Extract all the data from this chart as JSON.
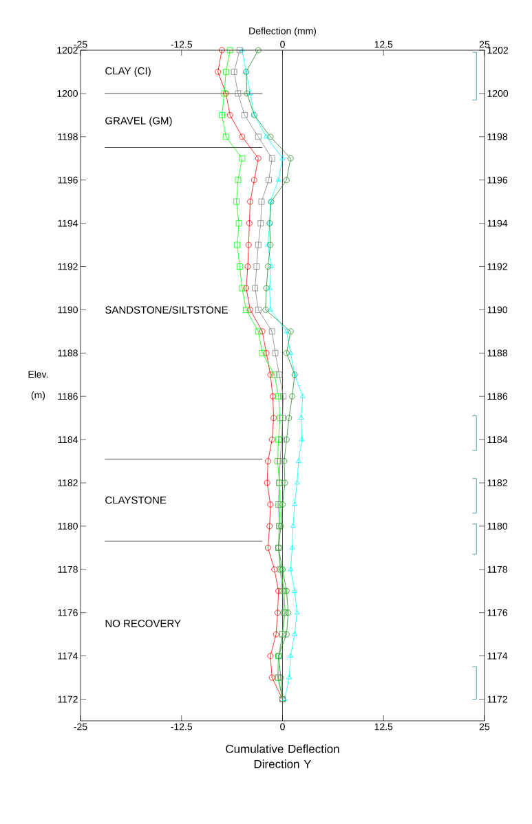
{
  "chart_data": {
    "type": "line",
    "xlabel": "Cumulative Deflection Direction Y",
    "ylabel": "Elev. (m)",
    "x2label": "Deflection (mm)",
    "xlim": [
      -25,
      25
    ],
    "xticks": [
      -25,
      -12.5,
      0,
      12.5,
      25
    ],
    "x2lim": [
      -25,
      25
    ],
    "x2ticks": [
      -25,
      -12.5,
      0,
      12.5,
      25
    ],
    "ylim": [
      1171,
      1202
    ],
    "yticks": [
      1172,
      1174,
      1176,
      1178,
      1180,
      1182,
      1184,
      1186,
      1188,
      1190,
      1192,
      1194,
      1196,
      1198,
      1200,
      1202
    ],
    "y2lim": [
      1171,
      1202
    ],
    "y2ticks": [
      1172,
      1174,
      1176,
      1178,
      1180,
      1182,
      1184,
      1186,
      1188,
      1190,
      1192,
      1194,
      1196,
      1198,
      1200,
      1202
    ],
    "grid": false,
    "line_style": "solid",
    "series": [
      {
        "color": "#ff0000",
        "marker": "circle",
        "x": [
          -7.5,
          -8,
          -7,
          -6.5,
          -5,
          -3,
          -3.5,
          -4,
          -4.1,
          -4.2,
          -4.3,
          -4.5,
          -4,
          -2.5,
          -2,
          -1.5,
          -1.2,
          -1.1,
          -1.3,
          -1.8,
          -1.9,
          -1.5,
          -1.6,
          -1.8,
          -1,
          -0.5,
          -0.6,
          -0.8,
          -1.5,
          -1.3,
          0
        ],
        "values": [
          1202,
          1201,
          1200,
          1199,
          1198,
          1197,
          1196,
          1195,
          1194,
          1193,
          1192,
          1191,
          1190,
          1189,
          1188,
          1187,
          1186,
          1185,
          1184,
          1183,
          1182,
          1181,
          1180,
          1179,
          1178,
          1177,
          1176,
          1175,
          1174,
          1173,
          1172
        ]
      },
      {
        "color": "#00ff00",
        "marker": "square",
        "x": [
          -6.5,
          -7,
          -7.2,
          -7.5,
          -7,
          -5,
          -5.5,
          -5.7,
          -5.4,
          -5.6,
          -5.3,
          -5,
          -4.5,
          -3,
          -2.5,
          -1,
          -0.5,
          -0.3,
          -0.5,
          -0.6,
          -0.4,
          -0.3,
          -0.4,
          -0.5,
          -0.2,
          0.2,
          0.3,
          0,
          -0.5,
          -0.6,
          0
        ],
        "values": [
          1202,
          1201,
          1200,
          1199,
          1198,
          1197,
          1196,
          1195,
          1194,
          1193,
          1192,
          1191,
          1190,
          1189,
          1188,
          1187,
          1186,
          1185,
          1184,
          1183,
          1182,
          1181,
          1180,
          1179,
          1178,
          1177,
          1176,
          1175,
          1174,
          1173,
          1172
        ]
      },
      {
        "color": "#00ffff",
        "marker": "triangle",
        "x": [
          -5,
          -4.5,
          -4,
          -3.5,
          -2,
          0,
          -0.5,
          -1.5,
          -1.6,
          -1.8,
          -1.4,
          -1.6,
          -1.5,
          0.5,
          1,
          1.5,
          2.5,
          2.3,
          2.4,
          2,
          1.8,
          1.5,
          1.3,
          1.2,
          1,
          1.5,
          1.8,
          1.5,
          1,
          0.8,
          0.3
        ],
        "values": [
          1202,
          1201,
          1200,
          1199,
          1198,
          1197,
          1196,
          1195,
          1194,
          1193,
          1192,
          1191,
          1190,
          1189,
          1188,
          1187,
          1186,
          1185,
          1184,
          1183,
          1182,
          1181,
          1180,
          1179,
          1178,
          1177,
          1176,
          1175,
          1174,
          1173,
          1172
        ]
      },
      {
        "color": "#228b22",
        "marker": "circle",
        "x": [
          -3,
          -4.5,
          -4.4,
          -3.5,
          -1.5,
          1,
          0.5,
          -1.4,
          -1.6,
          -1.5,
          -1.8,
          -2,
          -2.1,
          1,
          0.5,
          1.5,
          1.2,
          0.8,
          0.5,
          0.2,
          0.3,
          0,
          -0.2,
          -0.5,
          0,
          0.5,
          0.7,
          0.5,
          -0.5,
          -0.2,
          0
        ],
        "values": [
          1202,
          1201,
          1200,
          1199,
          1198,
          1197,
          1196,
          1195,
          1194,
          1193,
          1192,
          1191,
          1190,
          1189,
          1188,
          1187,
          1186,
          1185,
          1184,
          1183,
          1182,
          1181,
          1180,
          1179,
          1178,
          1177,
          1176,
          1175,
          1174,
          1173,
          1172
        ]
      },
      {
        "color": "#2a8c8c",
        "marker": "none",
        "x": [
          23.5,
          24,
          24,
          23.5
        ],
        "values": [
          1201.9,
          1201.9,
          1199.7,
          1199.7
        ]
      },
      {
        "color": "#2a8c8c",
        "marker": "none",
        "x": [
          23.5,
          24,
          24,
          23.5
        ],
        "values": [
          1185.1,
          1185.1,
          1183.5,
          1183.5
        ]
      },
      {
        "color": "#2a8c8c",
        "marker": "none",
        "x": [
          23.5,
          24,
          24,
          23.5
        ],
        "values": [
          1182.2,
          1182.2,
          1180.6,
          1180.6
        ]
      },
      {
        "color": "#2a8c8c",
        "marker": "none",
        "x": [
          23.5,
          24,
          24,
          23.5
        ],
        "values": [
          1180.1,
          1180.1,
          1178.7,
          1178.7
        ]
      },
      {
        "color": "#2a8c8c",
        "marker": "none",
        "x": [
          23.5,
          24,
          24,
          23.5
        ],
        "values": [
          1173.5,
          1173.5,
          1172,
          1172
        ]
      },
      {
        "color": "#808080",
        "marker": "square",
        "x": [
          -5.3,
          -6,
          -5.5,
          -4.7,
          -3,
          -1.3,
          -1.7,
          -2.6,
          -2.7,
          -3,
          -3.2,
          -3.4,
          -3,
          -1.3,
          -0.9,
          -0.4,
          0.1,
          0,
          -0.1,
          -0.3,
          -0.4,
          -0.5,
          -0.4,
          -0.5,
          -0.3,
          0,
          0.2,
          0,
          -0.4,
          -0.5,
          0
        ],
        "values": [
          1202,
          1201,
          1200,
          1199,
          1198,
          1197,
          1196,
          1195,
          1194,
          1193,
          1192,
          1191,
          1190,
          1189,
          1188,
          1187,
          1186,
          1185,
          1184,
          1183,
          1182,
          1181,
          1180,
          1179,
          1178,
          1177,
          1176,
          1175,
          1174,
          1173,
          1172
        ]
      }
    ],
    "ref_lines": [
      {
        "axis": "x",
        "value": 0,
        "color": "#000000"
      },
      {
        "axis": "y",
        "value": 1200,
        "color": "#000000"
      },
      {
        "axis": "y",
        "value": 1197.5,
        "color": "#000000"
      },
      {
        "axis": "y",
        "value": 1183.1,
        "color": "#000000"
      },
      {
        "axis": "y",
        "value": 1179.3,
        "color": "#000000"
      }
    ],
    "annotations": [
      "CLAY (CI)",
      "GRAVEL (GM)",
      "SANDSTONE/SILTSTONE",
      "CLAYSTONE",
      "NO RECOVERY"
    ]
  }
}
